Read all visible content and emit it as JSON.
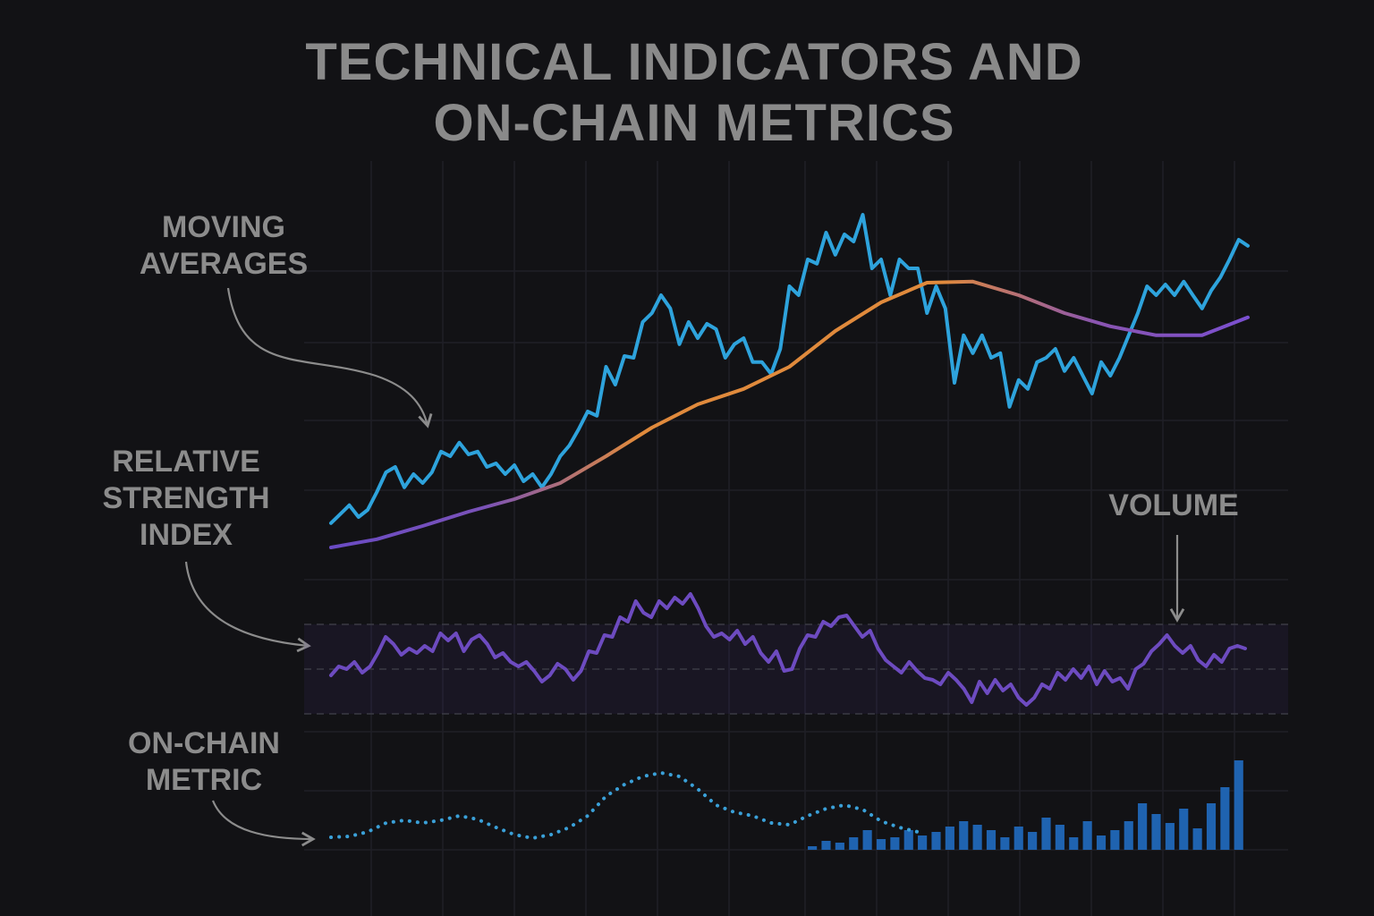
{
  "title": "TECHNICAL INDICATORS AND ON-CHAIN METRICS",
  "chart_data": [
    {
      "type": "line",
      "label": "MOVING AVERAGES",
      "ylim": [
        0,
        100
      ],
      "series": [
        {
          "color": "#2ea3dc",
          "values": [
            8.8,
            11.3,
            13.8,
            10.5,
            12.5,
            17.5,
            23,
            24.5,
            18.8,
            22.5,
            20,
            23,
            28.8,
            27.5,
            31.3,
            28,
            28.8,
            24.5,
            25.5,
            22.5,
            25,
            20.5,
            22.5,
            18.8,
            22.5,
            27.5,
            30.5,
            35,
            40,
            38.8,
            52.5,
            47.5,
            55.5,
            55,
            65,
            67.5,
            72.5,
            68.8,
            58.8,
            65,
            60.5,
            64.5,
            63,
            55,
            58.8,
            60.5,
            53.8,
            53.8,
            50.5,
            57.5,
            75,
            72.5,
            82.5,
            81.3,
            90,
            83.8,
            89.5,
            87.5,
            95,
            80,
            82.5,
            72.5,
            82.5,
            80,
            80,
            67.5,
            75,
            68.8,
            48,
            61.3,
            56.3,
            61.3,
            55,
            56.3,
            41.3,
            48.8,
            46.3,
            53.8,
            55,
            57.5,
            51.3,
            55,
            50,
            45,
            53.8,
            50,
            55,
            61.3,
            67.5,
            75,
            72.5,
            75.5,
            72.5,
            76.3,
            72.5,
            68.8,
            73.8,
            77.5,
            82.5,
            88,
            86.3
          ]
        },
        {
          "color": "#e08a3c",
          "gradient": [
            "#6a4bc4",
            "#7a52b8",
            "#e08a3c",
            "#e08a3c",
            "#e08a3c",
            "#8a55b0",
            "#7a4fd0"
          ],
          "values": [
            2,
            4.3,
            8,
            12,
            15.5,
            20,
            27.5,
            35.5,
            42,
            46.3,
            52.5,
            62.5,
            70.5,
            76,
            76.3,
            72.5,
            67.5,
            63.8,
            61.3,
            61.3,
            66.3
          ]
        }
      ]
    },
    {
      "type": "line",
      "label": "RELATIVE STRENGTH INDEX",
      "ylim": [
        0,
        100
      ],
      "reference_lines": [
        30,
        50,
        70
      ],
      "series": [
        {
          "color": "#6d4bc0",
          "values": [
            47.2,
            51.2,
            50,
            53.2,
            48.4,
            51.2,
            57.2,
            64.4,
            61.2,
            56.4,
            59.2,
            57.2,
            60.4,
            58,
            66,
            62.8,
            66,
            58,
            63.2,
            65.2,
            61.2,
            55.2,
            57.2,
            53.2,
            51.2,
            53.2,
            49.2,
            44.4,
            47.2,
            52.4,
            50,
            45.2,
            49.2,
            58,
            57.2,
            65.2,
            64.4,
            73.2,
            71.2,
            80.4,
            75.2,
            73.2,
            80.4,
            77.2,
            82,
            79.2,
            83.6,
            77.2,
            69.2,
            64.4,
            66,
            63.2,
            67.2,
            61.2,
            64.4,
            57.2,
            53.2,
            58,
            49.2,
            50,
            59.2,
            65.2,
            64.4,
            71.2,
            69.2,
            73.2,
            74,
            69.2,
            64.4,
            67.2,
            59.2,
            54,
            51.2,
            48.4,
            53.2,
            49.2,
            46,
            45.2,
            43.2,
            48.4,
            45.2,
            41.2,
            35.2,
            44.4,
            39.2,
            45.2,
            40.4,
            43.2,
            37.2,
            34,
            37.2,
            43.2,
            41.2,
            48.4,
            45.2,
            50,
            46,
            51.2,
            43.2,
            49.2,
            44.4,
            46,
            41.2,
            50,
            52.4,
            58,
            61.2,
            65.2,
            60.4,
            57.2,
            60.4,
            54,
            51.2,
            56.4,
            53.2,
            59.2,
            60.4,
            59.2
          ]
        }
      ]
    },
    {
      "type": "line",
      "label": "ON-CHAIN METRIC",
      "ylim": [
        0,
        100
      ],
      "xlim": [
        0,
        100
      ],
      "line_style": "dotted",
      "series": [
        {
          "color": "#3aa0d8",
          "x": [
            0,
            2,
            4,
            6,
            8,
            10,
            12,
            14,
            16,
            18,
            20,
            22,
            24,
            26,
            28,
            30,
            32,
            34,
            36,
            38,
            40,
            42,
            44,
            46,
            48,
            50,
            52,
            54,
            56,
            58,
            60,
            62,
            64
          ],
          "values": [
            14,
            15,
            20,
            30,
            33,
            30,
            33,
            38,
            34,
            25,
            17,
            13,
            17,
            25,
            38,
            60,
            73,
            82,
            86,
            82,
            68,
            50,
            42,
            38,
            30,
            28,
            38,
            46,
            50,
            45,
            32,
            25,
            20
          ]
        }
      ]
    },
    {
      "type": "bar",
      "label": "VOLUME",
      "ylim": [
        0,
        100
      ],
      "xlim": [
        0,
        100
      ],
      "color": "#1f63b0",
      "x": [
        52.5,
        54,
        55.5,
        57,
        58.5,
        60,
        61.5,
        63,
        64.5,
        66,
        67.5,
        69,
        70.5,
        72,
        73.5,
        75,
        76.5,
        78,
        79.5,
        81,
        82.5,
        84,
        85.5,
        87,
        88.5,
        90,
        91.5,
        93,
        94.5,
        96,
        97.5,
        99
      ],
      "values": [
        4,
        10,
        8,
        14,
        22,
        12,
        14,
        22,
        16,
        20,
        26,
        32,
        28,
        22,
        14,
        26,
        20,
        36,
        28,
        14,
        32,
        16,
        22,
        32,
        52,
        40,
        30,
        46,
        24,
        52,
        70,
        100
      ]
    }
  ]
}
